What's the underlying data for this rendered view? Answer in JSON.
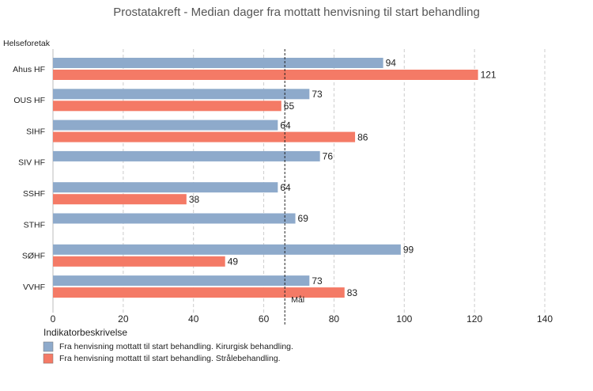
{
  "chart_data": {
    "type": "bar",
    "orientation": "horizontal",
    "title": "Prostatakreft - Median dager fra mottatt henvisning til start behandling",
    "y_label": "Helseforetak",
    "legend_title": "Indikatorbeskrivelse",
    "categories": [
      "Ahus HF",
      "OUS HF",
      "SIHF",
      "SIV HF",
      "SSHF",
      "STHF",
      "SØHF",
      "VVHF"
    ],
    "series": [
      {
        "name": "Fra henvisning mottatt til start behandling. Kirurgisk behandling.",
        "color": "#8eaacb",
        "values": [
          94,
          73,
          64,
          76,
          64,
          69,
          99,
          73
        ]
      },
      {
        "name": "Fra henvisning mottatt til start behandling. Strålebehandling.",
        "color": "#f47a66",
        "values": [
          121,
          65,
          86,
          null,
          38,
          null,
          49,
          83
        ]
      }
    ],
    "target": {
      "value": 66,
      "label": "Mål"
    },
    "xlim": [
      0,
      140
    ],
    "xticks": [
      0,
      20,
      40,
      60,
      80,
      100,
      120,
      140
    ],
    "grid": true
  }
}
